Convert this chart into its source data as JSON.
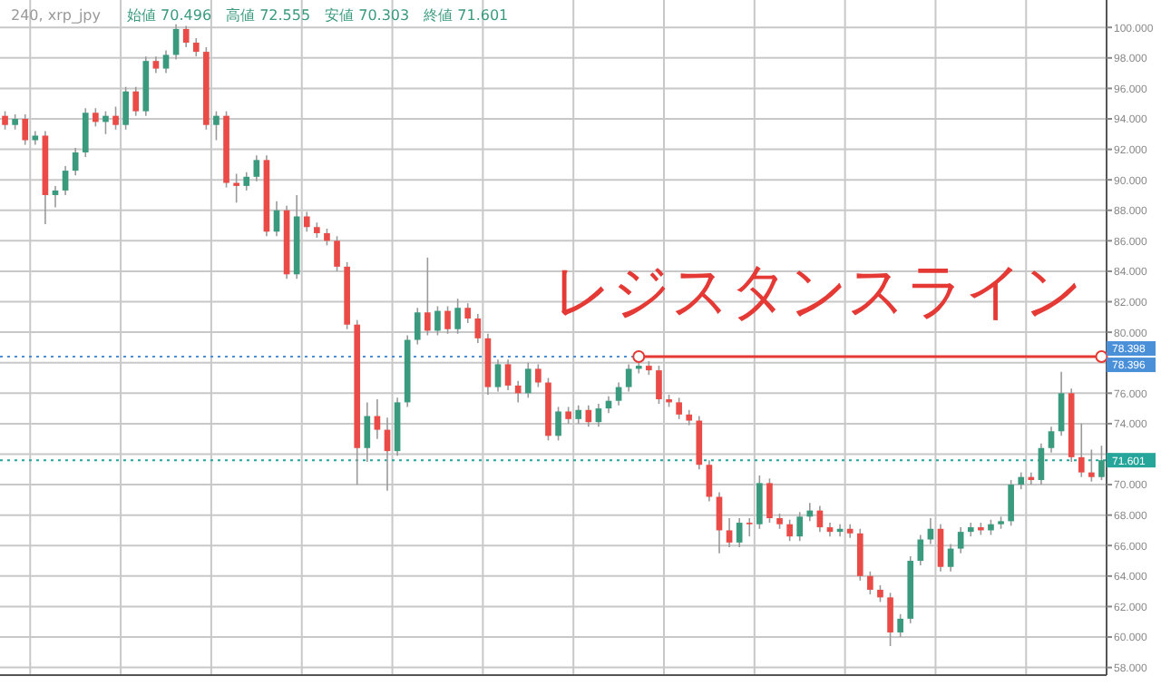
{
  "chart_data": {
    "type": "candlestick",
    "title": "240, xrp_jpy",
    "annotations": [
      "始値 70.496　高値 72.555　安値 70.303　終値 71.601",
      "レジスタンスライン"
    ],
    "categories": [
      null,
      null,
      null,
      null,
      null,
      null,
      null,
      null,
      null,
      null,
      null,
      null,
      null,
      null,
      null,
      null,
      null,
      null,
      null,
      null,
      null,
      null,
      null,
      null,
      null,
      null,
      null,
      null,
      null,
      null,
      null,
      null,
      null,
      null,
      null,
      null,
      null,
      null,
      null,
      null,
      null,
      null,
      null,
      null,
      null,
      null,
      null,
      null,
      null,
      null,
      null,
      null,
      null,
      null,
      null,
      null,
      null,
      null,
      null,
      null,
      null,
      null,
      null,
      null,
      null,
      null,
      null,
      null,
      null,
      null,
      null,
      null,
      null,
      null,
      null,
      null,
      null,
      null,
      null,
      null,
      null,
      null,
      null,
      null,
      null,
      null,
      null,
      null,
      null,
      null,
      null,
      null,
      null,
      null,
      null,
      null,
      null,
      null,
      null,
      null,
      null,
      null,
      null,
      null,
      null,
      null,
      null,
      null,
      null,
      null
    ],
    "ohlc": [
      [
        94.2,
        94.5,
        93.3,
        93.6
      ],
      [
        93.6,
        94.3,
        93.3,
        94.0
      ],
      [
        94.0,
        94.3,
        92.3,
        92.6
      ],
      [
        92.6,
        93.2,
        92.3,
        92.9
      ],
      [
        92.9,
        93.2,
        87.1,
        89.0
      ],
      [
        89.0,
        89.6,
        88.2,
        89.3
      ],
      [
        89.3,
        90.9,
        89.0,
        90.6
      ],
      [
        90.6,
        92.1,
        90.3,
        91.8
      ],
      [
        91.8,
        94.7,
        91.5,
        94.4
      ],
      [
        94.4,
        94.7,
        93.5,
        93.8
      ],
      [
        93.8,
        94.5,
        93.0,
        94.2
      ],
      [
        94.2,
        94.8,
        93.3,
        93.6
      ],
      [
        93.6,
        96.1,
        93.3,
        95.8
      ],
      [
        95.8,
        96.1,
        94.2,
        94.5
      ],
      [
        94.5,
        98.1,
        94.2,
        97.8
      ],
      [
        97.8,
        98.1,
        97.0,
        97.3
      ],
      [
        97.3,
        98.5,
        97.0,
        98.2
      ],
      [
        98.2,
        100.2,
        97.9,
        99.9
      ],
      [
        99.9,
        100.1,
        98.7,
        99.0
      ],
      [
        99.0,
        99.3,
        98.1,
        98.4
      ],
      [
        98.4,
        98.7,
        93.3,
        93.6
      ],
      [
        93.6,
        94.5,
        92.6,
        94.2
      ],
      [
        94.2,
        94.5,
        89.5,
        89.8
      ],
      [
        89.8,
        90.4,
        88.5,
        89.6
      ],
      [
        89.6,
        90.5,
        89.3,
        90.2
      ],
      [
        90.2,
        91.6,
        89.9,
        91.3
      ],
      [
        91.3,
        91.6,
        86.3,
        86.6
      ],
      [
        86.6,
        88.6,
        86.3,
        88.0
      ],
      [
        88.0,
        88.3,
        83.5,
        83.8
      ],
      [
        83.8,
        89.0,
        83.5,
        87.6
      ],
      [
        87.6,
        87.9,
        86.6,
        86.9
      ],
      [
        86.9,
        87.2,
        86.2,
        86.5
      ],
      [
        86.5,
        86.8,
        85.7,
        86.0
      ],
      [
        86.0,
        86.3,
        84.0,
        84.3
      ],
      [
        84.3,
        84.6,
        80.2,
        80.5
      ],
      [
        80.5,
        80.8,
        70.0,
        72.4
      ],
      [
        72.4,
        75.4,
        71.5,
        74.5
      ],
      [
        74.5,
        75.6,
        73.0,
        73.6
      ],
      [
        73.6,
        74.4,
        69.6,
        72.2
      ],
      [
        72.2,
        75.7,
        71.9,
        75.4
      ],
      [
        75.4,
        79.8,
        75.1,
        79.5
      ],
      [
        79.5,
        81.6,
        79.2,
        81.3
      ],
      [
        81.3,
        84.9,
        79.8,
        80.1
      ],
      [
        80.1,
        81.7,
        79.8,
        81.4
      ],
      [
        81.4,
        81.7,
        79.9,
        80.2
      ],
      [
        80.2,
        82.2,
        79.9,
        81.6
      ],
      [
        81.6,
        81.9,
        80.6,
        80.9
      ],
      [
        80.9,
        81.2,
        79.3,
        79.6
      ],
      [
        79.6,
        79.9,
        75.9,
        76.4
      ],
      [
        76.4,
        78.2,
        76.1,
        77.9
      ],
      [
        77.9,
        78.2,
        76.2,
        76.5
      ],
      [
        76.5,
        76.8,
        75.4,
        76.0
      ],
      [
        76.0,
        78.0,
        75.7,
        77.6
      ],
      [
        77.6,
        77.9,
        76.4,
        76.7
      ],
      [
        76.7,
        77.0,
        72.9,
        73.2
      ],
      [
        73.2,
        75.1,
        72.9,
        74.8
      ],
      [
        74.8,
        75.1,
        74.0,
        74.3
      ],
      [
        74.3,
        75.2,
        74.0,
        74.9
      ],
      [
        74.9,
        75.2,
        73.8,
        74.1
      ],
      [
        74.1,
        75.3,
        73.8,
        75.0
      ],
      [
        75.0,
        75.8,
        74.7,
        75.5
      ],
      [
        75.5,
        76.7,
        75.2,
        76.4
      ],
      [
        76.4,
        77.9,
        76.1,
        77.6
      ],
      [
        77.6,
        78.35,
        77.3,
        77.8
      ],
      [
        77.8,
        78.1,
        77.2,
        77.5
      ],
      [
        77.5,
        77.8,
        75.3,
        75.6
      ],
      [
        75.6,
        75.9,
        75.1,
        75.4
      ],
      [
        75.4,
        75.7,
        74.3,
        74.6
      ],
      [
        74.6,
        74.9,
        73.9,
        74.2
      ],
      [
        74.2,
        74.5,
        71.0,
        71.3
      ],
      [
        71.3,
        71.6,
        68.9,
        69.2
      ],
      [
        69.2,
        69.5,
        65.5,
        67.0
      ],
      [
        67.0,
        67.8,
        65.9,
        66.2
      ],
      [
        66.2,
        67.8,
        65.9,
        67.5
      ],
      [
        67.5,
        67.8,
        66.6,
        67.4
      ],
      [
        67.4,
        70.6,
        67.1,
        70.1
      ],
      [
        70.1,
        70.4,
        67.5,
        67.8
      ],
      [
        67.8,
        68.1,
        67.1,
        67.4
      ],
      [
        67.4,
        67.7,
        66.3,
        66.6
      ],
      [
        66.6,
        68.2,
        66.3,
        67.9
      ],
      [
        67.9,
        68.8,
        67.6,
        68.3
      ],
      [
        68.3,
        68.6,
        66.9,
        67.2
      ],
      [
        67.2,
        67.5,
        66.6,
        66.9
      ],
      [
        66.9,
        67.4,
        66.6,
        67.1
      ],
      [
        67.1,
        67.4,
        66.5,
        66.8
      ],
      [
        66.8,
        67.1,
        63.7,
        64.0
      ],
      [
        64.0,
        64.3,
        62.8,
        63.1
      ],
      [
        63.1,
        63.4,
        62.3,
        62.6
      ],
      [
        62.6,
        62.9,
        59.4,
        60.3
      ],
      [
        60.3,
        61.5,
        60.0,
        61.2
      ],
      [
        61.2,
        65.3,
        60.9,
        65.0
      ],
      [
        65.0,
        66.7,
        64.7,
        66.4
      ],
      [
        66.4,
        67.8,
        66.1,
        67.1
      ],
      [
        67.1,
        67.4,
        64.3,
        64.6
      ],
      [
        64.6,
        66.1,
        64.3,
        65.8
      ],
      [
        65.8,
        67.2,
        65.5,
        66.9
      ],
      [
        66.9,
        67.5,
        66.6,
        67.2
      ],
      [
        67.2,
        67.5,
        66.7,
        67.0
      ],
      [
        67.0,
        67.7,
        66.7,
        67.4
      ],
      [
        67.4,
        67.9,
        67.1,
        67.6
      ],
      [
        67.6,
        70.3,
        67.3,
        70.0
      ],
      [
        70.0,
        70.8,
        69.7,
        70.5
      ],
      [
        70.5,
        70.8,
        70.0,
        70.3
      ],
      [
        70.3,
        72.7,
        70.0,
        72.4
      ],
      [
        72.4,
        73.8,
        72.1,
        73.5
      ],
      [
        73.5,
        77.4,
        73.2,
        76.0
      ],
      [
        76.0,
        76.3,
        71.5,
        71.8
      ],
      [
        71.8,
        74.0,
        70.5,
        70.8
      ],
      [
        70.8,
        72.3,
        70.2,
        70.496
      ],
      [
        70.496,
        72.555,
        70.303,
        71.601
      ]
    ],
    "series": [
      {
        "type": "line",
        "values": [
          null,
          null,
          null,
          null,
          null,
          null,
          null,
          null,
          null,
          null,
          null,
          null,
          null,
          null,
          null,
          null,
          null,
          null,
          null,
          null,
          null,
          null,
          null,
          null,
          null,
          null,
          null,
          null,
          null,
          null,
          null,
          null,
          null,
          null,
          null,
          null,
          null,
          null,
          null,
          null,
          null,
          null,
          null,
          null,
          null,
          null,
          null,
          null,
          null,
          null,
          null,
          null,
          null,
          null,
          null,
          null,
          null,
          null,
          null,
          null,
          null,
          null,
          null,
          78.396,
          null,
          null,
          null,
          null,
          null,
          null,
          null,
          null,
          null,
          null,
          null,
          null,
          null,
          null,
          null,
          null,
          null,
          null,
          null,
          null,
          null,
          null,
          null,
          null,
          null,
          null,
          null,
          null,
          null,
          null,
          null,
          null,
          null,
          null,
          null,
          null,
          null,
          null,
          null,
          null,
          null,
          null,
          null,
          null,
          null,
          78.396
        ],
        "color": "#e53935",
        "marker": "circle",
        "value_labels": [
          null,
          null,
          null,
          null,
          null,
          null,
          null,
          null,
          null,
          null,
          null,
          null,
          null,
          null,
          null,
          null,
          null,
          null,
          null,
          null,
          null,
          null,
          null,
          null,
          null,
          null,
          null,
          null,
          null,
          null,
          null,
          null,
          null,
          null,
          null,
          null,
          null,
          null,
          null,
          null,
          null,
          null,
          null,
          null,
          null,
          null,
          null,
          null,
          null,
          null,
          null,
          null,
          null,
          null,
          null,
          null,
          null,
          null,
          null,
          null,
          null,
          null,
          null,
          null,
          null,
          null,
          null,
          null,
          null,
          null,
          null,
          null,
          null,
          null,
          null,
          null,
          null,
          null,
          null,
          null,
          null,
          null,
          null,
          null,
          null,
          null,
          null,
          null,
          null,
          null,
          null,
          null,
          null,
          null,
          null,
          null,
          null,
          null,
          null,
          null,
          null,
          null,
          null,
          null,
          null,
          null,
          null,
          null,
          null,
          "78.396"
        ]
      }
    ],
    "ref_lines": [
      {
        "axis": "y",
        "value": 71.601,
        "label": "71.601",
        "color": "#26a69a",
        "line_style": "dotted"
      },
      {
        "axis": "y",
        "value": 78.398,
        "label": "78.398",
        "color": "#4a90d9",
        "line_style": "dotted"
      }
    ],
    "ylim": [
      57.5,
      101.8
    ],
    "yticks": [
      {
        "value": 58,
        "label": "58.000"
      },
      {
        "value": 60,
        "label": "60.000"
      },
      {
        "value": 62,
        "label": "62.000"
      },
      {
        "value": 64,
        "label": "64.000"
      },
      {
        "value": 66,
        "label": "66.000"
      },
      {
        "value": 68,
        "label": "68.000"
      },
      {
        "value": 70,
        "label": "70.000"
      },
      {
        "value": 72,
        "label": null
      },
      {
        "value": 74,
        "label": "74.000"
      },
      {
        "value": 76,
        "label": "76.000"
      },
      {
        "value": 78,
        "label": null
      },
      {
        "value": 80,
        "label": "80.000"
      },
      {
        "value": 82,
        "label": "82.000"
      },
      {
        "value": 84,
        "label": "84.000"
      },
      {
        "value": 86,
        "label": "86.000"
      },
      {
        "value": 88,
        "label": "88.000"
      },
      {
        "value": 90,
        "label": "90.000"
      },
      {
        "value": 92,
        "label": "92.000"
      },
      {
        "value": 94,
        "label": "94.000"
      },
      {
        "value": 96,
        "label": "96.000"
      },
      {
        "value": 98,
        "label": "98.000"
      },
      {
        "value": 100,
        "label": "100.000"
      }
    ],
    "tick_labels": "y",
    "grid": true
  }
}
